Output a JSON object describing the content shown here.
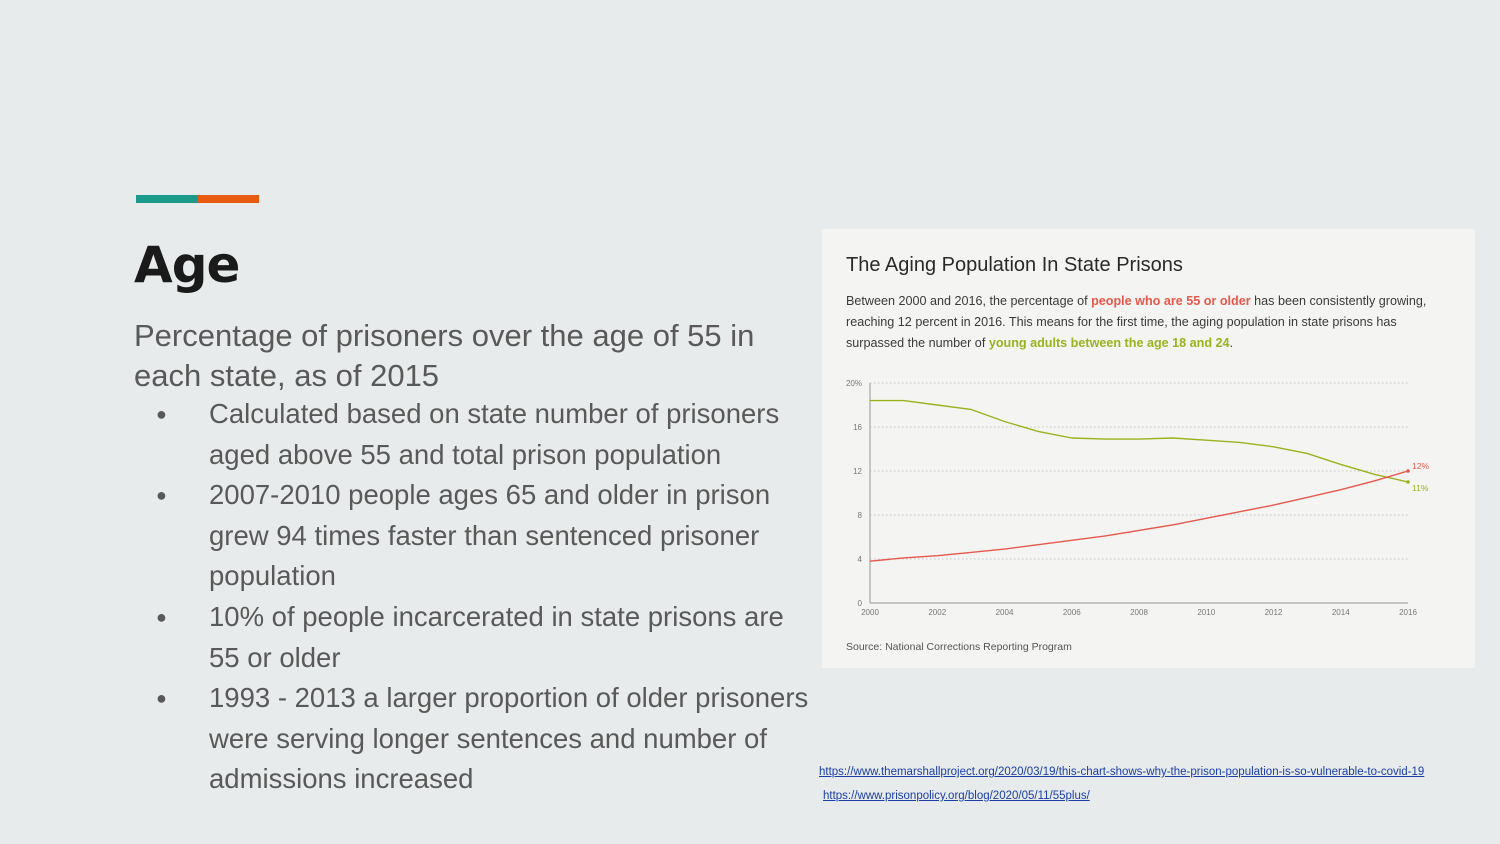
{
  "slide": {
    "title": "Age",
    "subtitle": "Percentage of prisoners over the age of 55 in each state, as of 2015",
    "bullets": [
      "Calculated based on state number of prisoners aged above 55 and total prison population",
      "2007-2010 people ages 65 and older in prison grew 94 times faster than sentenced prisoner population",
      "10% of people incarcerated in state prisons are 55 or older",
      "1993 - 2013 a larger proportion of older prisoners were serving longer sentences and number of admissions increased"
    ],
    "bullet_glyph": "●",
    "links": [
      "https://www.themarshallproject.org/2020/03/19/this-chart-shows-why-the-prison-population-is-so-vulnerable-to-covid-19",
      "https://www.prisonpolicy.org/blog/2020/05/11/55plus/"
    ],
    "accent_colors": [
      "#1b998b",
      "#e85a0e"
    ]
  },
  "card": {
    "title": "The Aging Population In State Prisons",
    "desc_1": "Between 2000 and 2016, the percentage of ",
    "desc_hl_1": "people who are 55 or older",
    "desc_2": " has been consistently growing, reaching 12 percent in 2016. This means for the first time, the aging population in state prisons has surpassed the number of ",
    "desc_hl_2": "young adults between the age 18 and 24",
    "desc_3": ".",
    "source": "Source: National Corrections Reporting Program"
  },
  "chart_data": {
    "type": "line",
    "x": [
      2000,
      2001,
      2002,
      2003,
      2004,
      2005,
      2006,
      2007,
      2008,
      2009,
      2010,
      2011,
      2012,
      2013,
      2014,
      2015,
      2016
    ],
    "x_ticks": [
      "2000",
      "2002",
      "2004",
      "2006",
      "2008",
      "2010",
      "2012",
      "2014",
      "2016"
    ],
    "y_ticks": [
      "0",
      "4",
      "8",
      "12",
      "16",
      "20%"
    ],
    "ylim": [
      0,
      20
    ],
    "grid": true,
    "series": [
      {
        "color": "#9bb21d",
        "values": [
          18.4,
          18.4,
          18.0,
          17.6,
          16.5,
          15.6,
          15.0,
          14.9,
          14.9,
          15.0,
          14.8,
          14.6,
          14.2,
          13.6,
          12.6,
          11.7,
          11.0
        ],
        "end_label": "11%"
      },
      {
        "color": "#e8584a",
        "values": [
          3.8,
          4.1,
          4.3,
          4.6,
          4.9,
          5.3,
          5.7,
          6.1,
          6.6,
          7.1,
          7.7,
          8.3,
          8.9,
          9.6,
          10.3,
          11.1,
          12.0
        ],
        "end_label": "12%"
      }
    ]
  }
}
